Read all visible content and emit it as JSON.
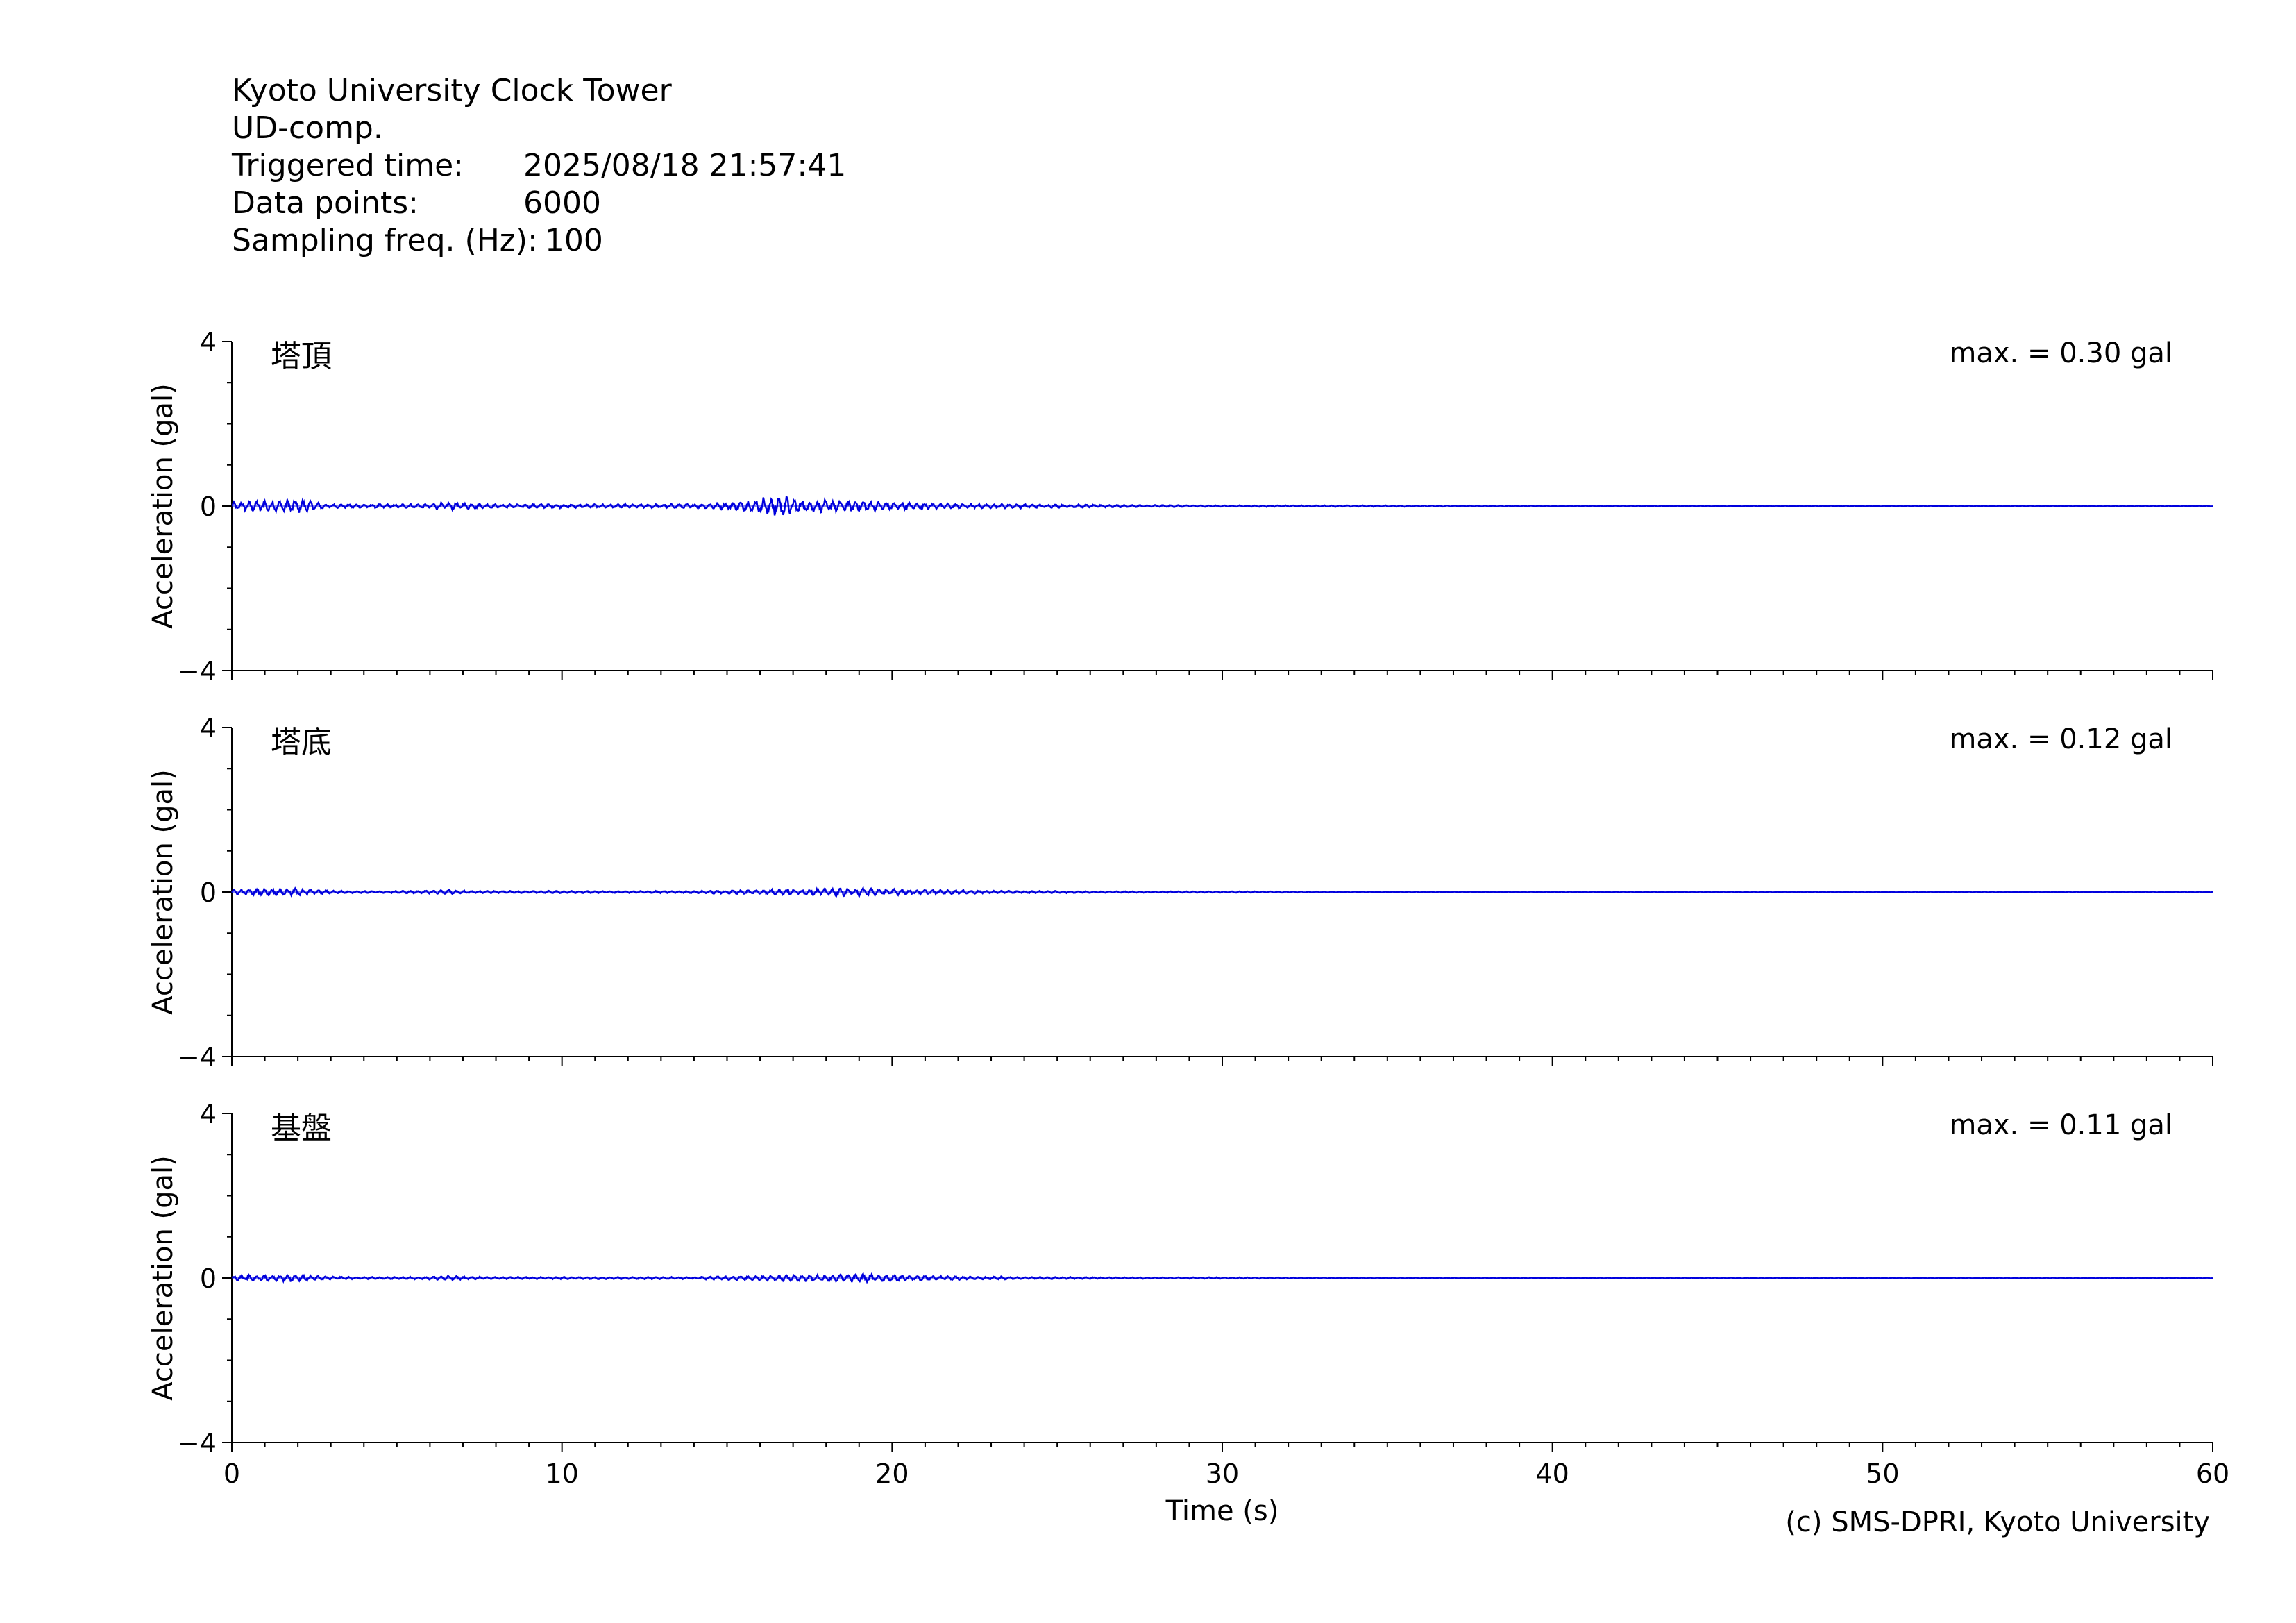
{
  "header": {
    "station": "Kyoto University Clock Tower",
    "component": "UD-comp.",
    "triggered_label": "Triggered time:",
    "triggered_value": "2025/08/18 21:57:41",
    "points_label": "Data points:",
    "points_value": "6000",
    "freq_label": "Sampling freq. (Hz):",
    "freq_value": "100"
  },
  "credit": "(c) SMS-DPRI, Kyoto University",
  "colors": {
    "trace": "#0000dd",
    "axis": "#000000"
  },
  "chart_data": [
    {
      "type": "line",
      "panel_label": "塔頂",
      "max_label": "max. = 0.30 gal",
      "ylabel": "Acceleration (gal)",
      "xlabel": "",
      "xlim": [
        0,
        60
      ],
      "ylim": [
        -4,
        4
      ],
      "yticks": [
        "4",
        "0",
        "−4"
      ],
      "xticks": [],
      "series": [
        {
          "x": [
            0,
            0.5,
            1,
            1.5,
            2,
            2.5,
            3,
            4,
            5,
            6,
            6.5,
            7,
            8,
            9,
            10,
            11,
            12,
            13,
            14,
            15,
            15.5,
            16,
            16.2,
            16.5,
            16.8,
            17,
            17.5,
            18,
            18.5,
            19,
            19.5,
            20,
            21,
            22,
            23,
            24,
            25,
            26,
            27,
            28,
            30,
            35,
            40,
            45,
            50,
            55,
            60
          ],
          "y": [
            0.1,
            0.12,
            0.15,
            0.15,
            0.18,
            0.1,
            0.05,
            0.05,
            0.05,
            0.06,
            0.1,
            0.08,
            0.05,
            0.05,
            0.05,
            0.05,
            0.05,
            0.05,
            0.06,
            0.08,
            0.12,
            0.2,
            0.25,
            0.3,
            0.25,
            0.2,
            0.18,
            0.15,
            0.15,
            0.14,
            0.12,
            0.1,
            0.08,
            0.06,
            0.06,
            0.05,
            0.04,
            0.04,
            0.03,
            0.03,
            0.02,
            0.02,
            0.01,
            0.01,
            0.01,
            0.01,
            0.01
          ]
        }
      ]
    },
    {
      "type": "line",
      "panel_label": "塔底",
      "max_label": "max. = 0.12 gal",
      "ylabel": "Acceleration (gal)",
      "xlabel": "",
      "xlim": [
        0,
        60
      ],
      "ylim": [
        -4,
        4
      ],
      "yticks": [
        "4",
        "0",
        "−4"
      ],
      "xticks": [],
      "series": [
        {
          "x": [
            0,
            0.5,
            1,
            1.5,
            2,
            2.5,
            3,
            4,
            5,
            6,
            6.5,
            7,
            8,
            10,
            12,
            14,
            15,
            16,
            17,
            18,
            18.5,
            19,
            19.5,
            20,
            21,
            22,
            23,
            24,
            25,
            27,
            30,
            35,
            40,
            45,
            50,
            55,
            60
          ],
          "y": [
            0.06,
            0.07,
            0.08,
            0.08,
            0.1,
            0.06,
            0.04,
            0.03,
            0.03,
            0.04,
            0.06,
            0.04,
            0.03,
            0.03,
            0.03,
            0.03,
            0.05,
            0.06,
            0.08,
            0.08,
            0.1,
            0.12,
            0.1,
            0.08,
            0.06,
            0.05,
            0.04,
            0.03,
            0.03,
            0.02,
            0.02,
            0.01,
            0.01,
            0.01,
            0.01,
            0.01,
            0.01
          ]
        }
      ]
    },
    {
      "type": "line",
      "panel_label": "基盤",
      "max_label": "max. = 0.11 gal",
      "ylabel": "Acceleration (gal)",
      "xlabel": "Time (s)",
      "xlim": [
        0,
        60
      ],
      "ylim": [
        -4,
        4
      ],
      "yticks": [
        "4",
        "0",
        "−4"
      ],
      "xticks": [
        "0",
        "10",
        "20",
        "30",
        "40",
        "50",
        "60"
      ],
      "series": [
        {
          "x": [
            0,
            0.5,
            1,
            1.5,
            2,
            2.5,
            3,
            4,
            5,
            6,
            6.5,
            7,
            8,
            10,
            12,
            14,
            15,
            16,
            17,
            18,
            18.5,
            19,
            19.5,
            20,
            21,
            22,
            23,
            24,
            25,
            27,
            30,
            35,
            40,
            45,
            50,
            55,
            60
          ],
          "y": [
            0.06,
            0.07,
            0.08,
            0.08,
            0.09,
            0.06,
            0.04,
            0.03,
            0.03,
            0.04,
            0.06,
            0.04,
            0.03,
            0.03,
            0.03,
            0.03,
            0.05,
            0.06,
            0.08,
            0.09,
            0.1,
            0.11,
            0.1,
            0.08,
            0.06,
            0.05,
            0.04,
            0.03,
            0.03,
            0.02,
            0.02,
            0.01,
            0.01,
            0.01,
            0.01,
            0.01,
            0.01
          ]
        }
      ]
    }
  ]
}
